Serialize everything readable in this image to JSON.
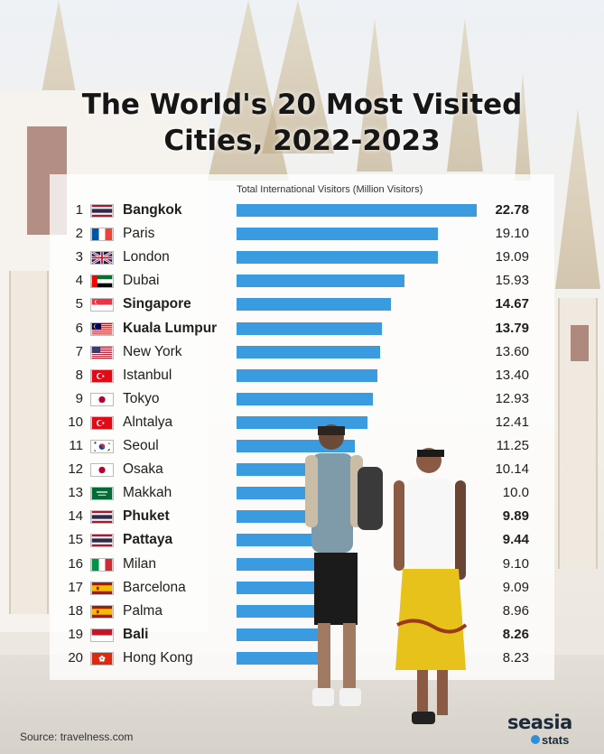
{
  "title_line1": "The World's 20 Most Visited",
  "title_line2": "Cities, 2022-2023",
  "source": "Source: travelness.com",
  "brand": {
    "name": "seasia",
    "sub": "stats"
  },
  "colors": {
    "bar": "#3b9be0",
    "text": "#1f1f1f"
  },
  "chart_data": {
    "type": "bar",
    "orientation": "horizontal",
    "title": "The World's 20 Most Visited Cities, 2022-2023",
    "axis_label": "Total International Visitors (Million Visitors)",
    "xlim": [
      0,
      22.78
    ],
    "rows": [
      {
        "rank": "1",
        "city": "Bangkok",
        "value": 22.78,
        "label": "22.78",
        "flag": "thailand",
        "bold": true
      },
      {
        "rank": "2",
        "city": "Paris",
        "value": 19.1,
        "label": "19.10",
        "flag": "france",
        "bold": false
      },
      {
        "rank": "3",
        "city": "London",
        "value": 19.09,
        "label": "19.09",
        "flag": "uk",
        "bold": false
      },
      {
        "rank": "4",
        "city": "Dubai",
        "value": 15.93,
        "label": "15.93",
        "flag": "uae",
        "bold": false
      },
      {
        "rank": "5",
        "city": "Singapore",
        "value": 14.67,
        "label": "14.67",
        "flag": "singapore",
        "bold": true
      },
      {
        "rank": "6",
        "city": "Kuala Lumpur",
        "value": 13.79,
        "label": "13.79",
        "flag": "malaysia",
        "bold": true
      },
      {
        "rank": "7",
        "city": "New York",
        "value": 13.6,
        "label": "13.60",
        "flag": "usa",
        "bold": false
      },
      {
        "rank": "8",
        "city": "Istanbul",
        "value": 13.4,
        "label": "13.40",
        "flag": "turkey",
        "bold": false
      },
      {
        "rank": "9",
        "city": "Tokyo",
        "value": 12.93,
        "label": "12.93",
        "flag": "japan",
        "bold": false
      },
      {
        "rank": "10",
        "city": "Alntalya",
        "value": 12.41,
        "label": "12.41",
        "flag": "turkey",
        "bold": false
      },
      {
        "rank": "11",
        "city": "Seoul",
        "value": 11.25,
        "label": "11.25",
        "flag": "south-korea",
        "bold": false
      },
      {
        "rank": "12",
        "city": "Osaka",
        "value": 10.14,
        "label": "10.14",
        "flag": "japan",
        "bold": false
      },
      {
        "rank": "13",
        "city": "Makkah",
        "value": 10.0,
        "label": "10.0",
        "flag": "saudi-arabia",
        "bold": false
      },
      {
        "rank": "14",
        "city": "Phuket",
        "value": 9.89,
        "label": "9.89",
        "flag": "thailand",
        "bold": true
      },
      {
        "rank": "15",
        "city": "Pattaya",
        "value": 9.44,
        "label": "9.44",
        "flag": "thailand",
        "bold": true
      },
      {
        "rank": "16",
        "city": "Milan",
        "value": 9.1,
        "label": "9.10",
        "flag": "italy",
        "bold": false
      },
      {
        "rank": "17",
        "city": "Barcelona",
        "value": 9.09,
        "label": "9.09",
        "flag": "spain",
        "bold": false
      },
      {
        "rank": "18",
        "city": "Palma",
        "value": 8.96,
        "label": "8.96",
        "flag": "spain",
        "bold": false
      },
      {
        "rank": "19",
        "city": "Bali",
        "value": 8.26,
        "label": "8.26",
        "flag": "indonesia",
        "bold": true
      },
      {
        "rank": "20",
        "city": "Hong Kong",
        "value": 8.23,
        "label": "8.23",
        "flag": "hong-kong",
        "bold": false
      }
    ]
  }
}
